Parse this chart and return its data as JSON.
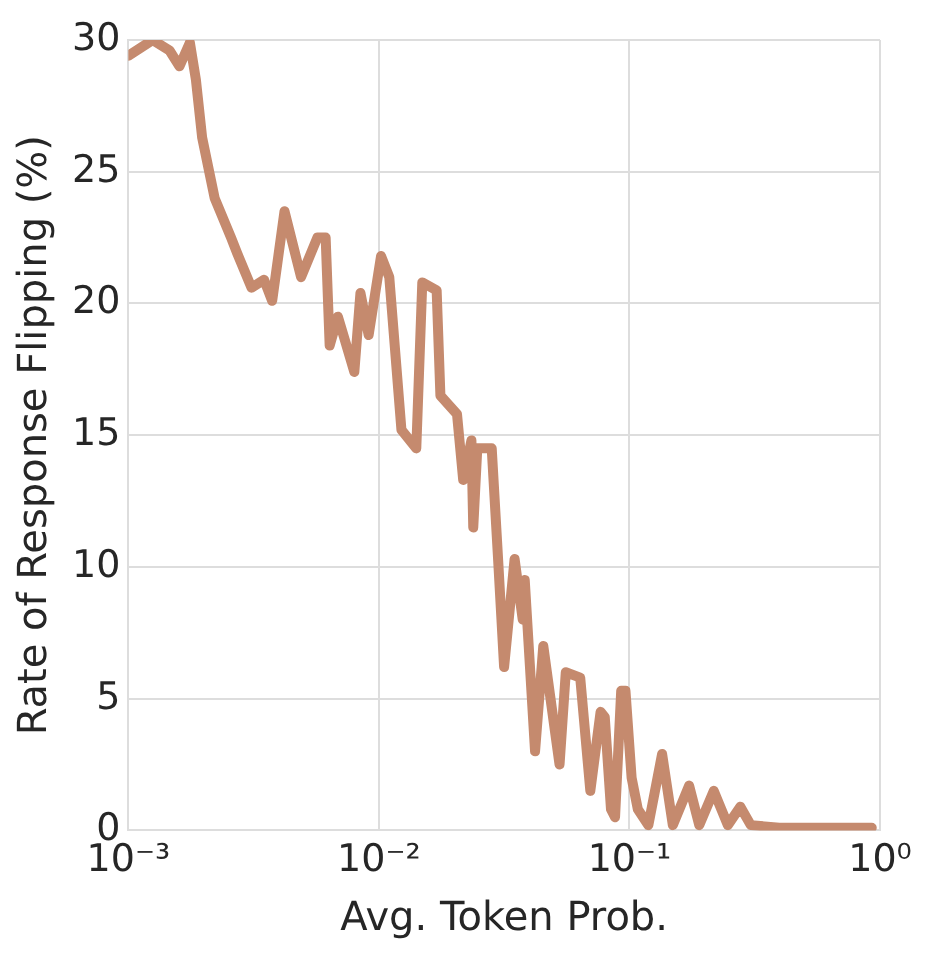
{
  "chart_data": {
    "type": "line",
    "xlabel": "Avg. Token Prob.",
    "ylabel": "Rate of Response Flipping (%)",
    "log": "x",
    "grid": true,
    "legend": false,
    "marker": "none",
    "line_style": "solid",
    "xlim": [
      0.001,
      1
    ],
    "xticks": [
      {
        "value": 0.001,
        "label": "10⁻³"
      },
      {
        "value": 0.01,
        "label": "10⁻²"
      },
      {
        "value": 0.1,
        "label": "10⁻¹"
      },
      {
        "value": 1,
        "label": "10⁰"
      }
    ],
    "ylim": [
      0,
      30
    ],
    "yticks": [
      0,
      5,
      10,
      15,
      20,
      25,
      30
    ],
    "series": [
      {
        "color": "#c58a6e",
        "x": [
          0.001,
          0.00125,
          0.00146,
          0.0016,
          0.00176,
          0.00186,
          0.00197,
          0.00221,
          0.00257,
          0.00272,
          0.0031,
          0.00348,
          0.00375,
          0.0042,
          0.00489,
          0.00568,
          0.00613,
          0.00636,
          0.00686,
          0.00798,
          0.00844,
          0.0091,
          0.0102,
          0.011,
          0.0123,
          0.0141,
          0.0149,
          0.017,
          0.0176,
          0.0205,
          0.0217,
          0.0234,
          0.0238,
          0.0247,
          0.0282,
          0.0299,
          0.0316,
          0.0348,
          0.0375,
          0.0382,
          0.042,
          0.0453,
          0.0526,
          0.0557,
          0.0636,
          0.0698,
          0.0767,
          0.0797,
          0.0844,
          0.0876,
          0.0927,
          0.0964,
          0.102,
          0.108,
          0.119,
          0.135,
          0.149,
          0.173,
          0.19,
          0.217,
          0.247,
          0.277,
          0.305,
          0.396,
          0.927
        ],
        "values": [
          29.4,
          30,
          29.6,
          29,
          29.9,
          28.5,
          26.3,
          24,
          22.5,
          21.9,
          20.6,
          20.9,
          20.1,
          23.5,
          21,
          22.5,
          22.5,
          18.4,
          19.5,
          17.4,
          20.4,
          18.8,
          21.8,
          21,
          15.2,
          14.5,
          20.8,
          20.5,
          16.5,
          15.8,
          13.3,
          14.8,
          11.5,
          14.5,
          14.5,
          10.3,
          6.2,
          10.3,
          8,
          9.5,
          3,
          7,
          2.5,
          6,
          5.8,
          1.5,
          4.5,
          4.3,
          0.8,
          0.5,
          5.3,
          5.3,
          2,
          0.8,
          0.2,
          2.9,
          0.2,
          1.7,
          0.2,
          1.5,
          0.2,
          0.9,
          0.2,
          0.1,
          0.1
        ]
      }
    ]
  }
}
